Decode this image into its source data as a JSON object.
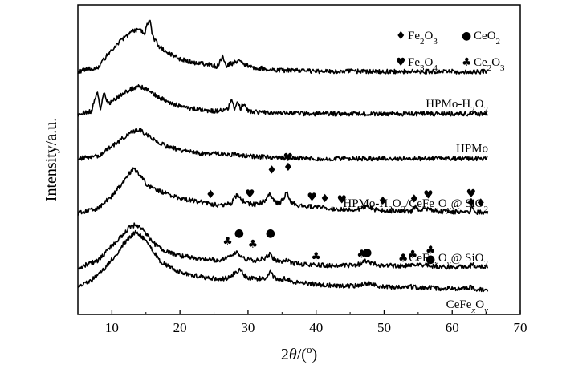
{
  "chart_data": {
    "type": "line",
    "title": "",
    "xlabel": "2θ/(o)",
    "ylabel": "Intensity/a.u.",
    "xlim": [
      5,
      70
    ],
    "x_ticks": [
      10,
      20,
      30,
      40,
      50,
      60,
      70
    ],
    "y_ticks_shown": false,
    "grid": false,
    "legend": {
      "placement": "top-right",
      "entries": [
        {
          "symbol": "diamond",
          "glyph": "♦",
          "label": "Fe2O3"
        },
        {
          "symbol": "circle",
          "glyph": "●",
          "label": "CeO2"
        },
        {
          "symbol": "heart",
          "glyph": "♥",
          "label": "Fe3O4"
        },
        {
          "symbol": "club",
          "glyph": "♣",
          "label": "Ce2O3"
        }
      ]
    },
    "series": [
      {
        "name": "",
        "baseline": 0.88,
        "points": [
          [
            5,
            0.0
          ],
          [
            8,
            0.02
          ],
          [
            10,
            0.09
          ],
          [
            12,
            0.14
          ],
          [
            13,
            0.16
          ],
          [
            14,
            0.17
          ],
          [
            14.8,
            0.15
          ],
          [
            15.2,
            0.19
          ],
          [
            15.6,
            0.21
          ],
          [
            16,
            0.14
          ],
          [
            17,
            0.1
          ],
          [
            18,
            0.08
          ],
          [
            20,
            0.05
          ],
          [
            22,
            0.035
          ],
          [
            24,
            0.03
          ],
          [
            25.5,
            0.02
          ],
          [
            26.2,
            0.06
          ],
          [
            26.8,
            0.025
          ],
          [
            28,
            0.035
          ],
          [
            28.7,
            0.05
          ],
          [
            29.5,
            0.03
          ],
          [
            31,
            0.015
          ],
          [
            33,
            0.01
          ],
          [
            35,
            0.005
          ],
          [
            40,
            0.002
          ],
          [
            50,
            0.0
          ],
          [
            60,
            0.0
          ],
          [
            70,
            0.0
          ]
        ]
      },
      {
        "name": "HPMo-H2O2",
        "baseline": 0.71,
        "points": [
          [
            5,
            0.0
          ],
          [
            7,
            0.01
          ],
          [
            7.9,
            0.09
          ],
          [
            8.3,
            0.02
          ],
          [
            8.8,
            0.08
          ],
          [
            9.2,
            0.06
          ],
          [
            9.6,
            0.04
          ],
          [
            10,
            0.05
          ],
          [
            11,
            0.07
          ],
          [
            12,
            0.09
          ],
          [
            13,
            0.1
          ],
          [
            14,
            0.11
          ],
          [
            15,
            0.1
          ],
          [
            16,
            0.08
          ],
          [
            18,
            0.05
          ],
          [
            20,
            0.03
          ],
          [
            22,
            0.02
          ],
          [
            25,
            0.01
          ],
          [
            27,
            0.02
          ],
          [
            27.6,
            0.05
          ],
          [
            28,
            0.02
          ],
          [
            28.4,
            0.05
          ],
          [
            28.9,
            0.02
          ],
          [
            29.3,
            0.04
          ],
          [
            30,
            0.01
          ],
          [
            32,
            0.005
          ],
          [
            35,
            0.002
          ],
          [
            40,
            0.0
          ],
          [
            50,
            0.0
          ],
          [
            60,
            0.0
          ],
          [
            70,
            0.0
          ]
        ]
      },
      {
        "name": "HPMo",
        "baseline": 0.53,
        "points": [
          [
            5,
            0.0
          ],
          [
            8,
            0.01
          ],
          [
            10,
            0.05
          ],
          [
            12,
            0.09
          ],
          [
            13,
            0.11
          ],
          [
            14,
            0.115
          ],
          [
            15,
            0.1
          ],
          [
            16,
            0.08
          ],
          [
            18,
            0.05
          ],
          [
            20,
            0.035
          ],
          [
            22,
            0.025
          ],
          [
            24,
            0.02
          ],
          [
            26,
            0.02
          ],
          [
            28,
            0.015
          ],
          [
            30,
            0.01
          ],
          [
            33,
            0.005
          ],
          [
            36,
            0.002
          ],
          [
            40,
            0.0
          ],
          [
            50,
            0.0
          ],
          [
            60,
            0.0
          ],
          [
            70,
            0.0
          ]
        ]
      },
      {
        "name": "HPMo-H2O2/CeFexOy@ SiO2",
        "baseline": 0.31,
        "points": [
          [
            5,
            0.0
          ],
          [
            8,
            0.02
          ],
          [
            10,
            0.07
          ],
          [
            11.5,
            0.12
          ],
          [
            12.5,
            0.16
          ],
          [
            13.2,
            0.18
          ],
          [
            14,
            0.16
          ],
          [
            15,
            0.12
          ],
          [
            16,
            0.1
          ],
          [
            18,
            0.08
          ],
          [
            20,
            0.06
          ],
          [
            22,
            0.05
          ],
          [
            24,
            0.04
          ],
          [
            26,
            0.03
          ],
          [
            27.5,
            0.04
          ],
          [
            28.4,
            0.075
          ],
          [
            29.2,
            0.05
          ],
          [
            30,
            0.04
          ],
          [
            31,
            0.035
          ],
          [
            32.5,
            0.05
          ],
          [
            33.2,
            0.08
          ],
          [
            33.8,
            0.05
          ],
          [
            34.6,
            0.04
          ],
          [
            35.3,
            0.06
          ],
          [
            35.7,
            0.085
          ],
          [
            36.2,
            0.05
          ],
          [
            37,
            0.035
          ],
          [
            38,
            0.03
          ],
          [
            40,
            0.025
          ],
          [
            42,
            0.02
          ],
          [
            44,
            0.015
          ],
          [
            46,
            0.015
          ],
          [
            47.5,
            0.03
          ],
          [
            48.5,
            0.015
          ],
          [
            50,
            0.01
          ],
          [
            52,
            0.01
          ],
          [
            54,
            0.008
          ],
          [
            54.6,
            0.025
          ],
          [
            55.2,
            0.01
          ],
          [
            56.5,
            0.02
          ],
          [
            57.5,
            0.008
          ],
          [
            60,
            0.005
          ],
          [
            62.5,
            0.005
          ],
          [
            62.9,
            0.025
          ],
          [
            63.3,
            0.005
          ],
          [
            64,
            0.004
          ],
          [
            66,
            0.003
          ],
          [
            70,
            0.0
          ]
        ]
      },
      {
        "name": "CeFexOy@ SiO2",
        "baseline": 0.09,
        "points": [
          [
            5,
            0.0
          ],
          [
            8,
            0.03
          ],
          [
            10,
            0.09
          ],
          [
            11.5,
            0.13
          ],
          [
            12.5,
            0.16
          ],
          [
            13.5,
            0.175
          ],
          [
            14.5,
            0.16
          ],
          [
            15.5,
            0.12
          ],
          [
            16.5,
            0.09
          ],
          [
            18,
            0.065
          ],
          [
            20,
            0.05
          ],
          [
            22,
            0.04
          ],
          [
            24,
            0.035
          ],
          [
            26,
            0.03
          ],
          [
            27.5,
            0.05
          ],
          [
            28.4,
            0.06
          ],
          [
            29.2,
            0.04
          ],
          [
            30,
            0.035
          ],
          [
            31,
            0.03
          ],
          [
            32.5,
            0.04
          ],
          [
            33.2,
            0.055
          ],
          [
            34,
            0.03
          ],
          [
            35,
            0.025
          ],
          [
            35.6,
            0.035
          ],
          [
            36.3,
            0.02
          ],
          [
            38,
            0.015
          ],
          [
            40,
            0.012
          ],
          [
            42,
            0.01
          ],
          [
            45,
            0.01
          ],
          [
            46.5,
            0.015
          ],
          [
            47.3,
            0.03
          ],
          [
            48,
            0.02
          ],
          [
            49,
            0.012
          ],
          [
            52,
            0.008
          ],
          [
            54,
            0.01
          ],
          [
            56,
            0.012
          ],
          [
            57,
            0.006
          ],
          [
            60,
            0.004
          ],
          [
            62.5,
            0.004
          ],
          [
            63,
            0.015
          ],
          [
            63.5,
            0.004
          ],
          [
            66,
            0.002
          ],
          [
            70,
            0.0
          ]
        ]
      },
      {
        "name": "CeFexOy",
        "baseline": 0.0,
        "points": []
      }
    ],
    "markers": [
      {
        "series_index": 3,
        "symbol": "diamond",
        "x": 24.5,
        "lift": 0.02
      },
      {
        "series_index": 3,
        "symbol": "heart",
        "x": 30.3,
        "lift": 0.02
      },
      {
        "series_index": 3,
        "symbol": "diamond",
        "x": 33.5,
        "lift": 0.09
      },
      {
        "series_index": 3,
        "symbol": "heart",
        "x": 35.9,
        "lift": 0.135
      },
      {
        "series_index": 3,
        "symbol": "diamond",
        "x": 35.9,
        "lift": 0.095
      },
      {
        "series_index": 3,
        "symbol": "heart",
        "x": 39.4,
        "lift": 0.02
      },
      {
        "series_index": 3,
        "symbol": "diamond",
        "x": 41.3,
        "lift": 0.02
      },
      {
        "series_index": 3,
        "symbol": "heart",
        "x": 43.8,
        "lift": 0.02
      },
      {
        "series_index": 3,
        "symbol": "diamond",
        "x": 49.8,
        "lift": 0.02
      },
      {
        "series_index": 3,
        "symbol": "diamond",
        "x": 54.4,
        "lift": 0.02
      },
      {
        "series_index": 3,
        "symbol": "heart",
        "x": 56.5,
        "lift": 0.035
      },
      {
        "series_index": 3,
        "symbol": "heart",
        "x": 62.8,
        "lift": 0.04
      },
      {
        "series_index": 3,
        "symbol": "diamond",
        "x": 62.8,
        "lift": 0.005
      },
      {
        "series_index": 3,
        "symbol": "diamond",
        "x": 64.2,
        "lift": 0.02
      },
      {
        "series_index": 4,
        "symbol": "club",
        "x": 27.0,
        "lift": 0.045
      },
      {
        "series_index": 4,
        "symbol": "circle",
        "x": 28.7,
        "lift": 0.07
      },
      {
        "series_index": 4,
        "symbol": "club",
        "x": 30.7,
        "lift": 0.045
      },
      {
        "series_index": 4,
        "symbol": "circle",
        "x": 33.3,
        "lift": 0.07
      },
      {
        "series_index": 4,
        "symbol": "club",
        "x": 40.0,
        "lift": 0.015
      },
      {
        "series_index": 4,
        "symbol": "club",
        "x": 46.7,
        "lift": 0.018
      },
      {
        "series_index": 4,
        "symbol": "circle",
        "x": 47.5,
        "lift": 0.018
      },
      {
        "series_index": 4,
        "symbol": "club",
        "x": 52.8,
        "lift": 0.012
      },
      {
        "series_index": 4,
        "symbol": "club",
        "x": 54.2,
        "lift": 0.025
      },
      {
        "series_index": 4,
        "symbol": "club",
        "x": 56.8,
        "lift": 0.045
      },
      {
        "series_index": 4,
        "symbol": "circle",
        "x": 56.8,
        "lift": 0.01
      }
    ]
  }
}
